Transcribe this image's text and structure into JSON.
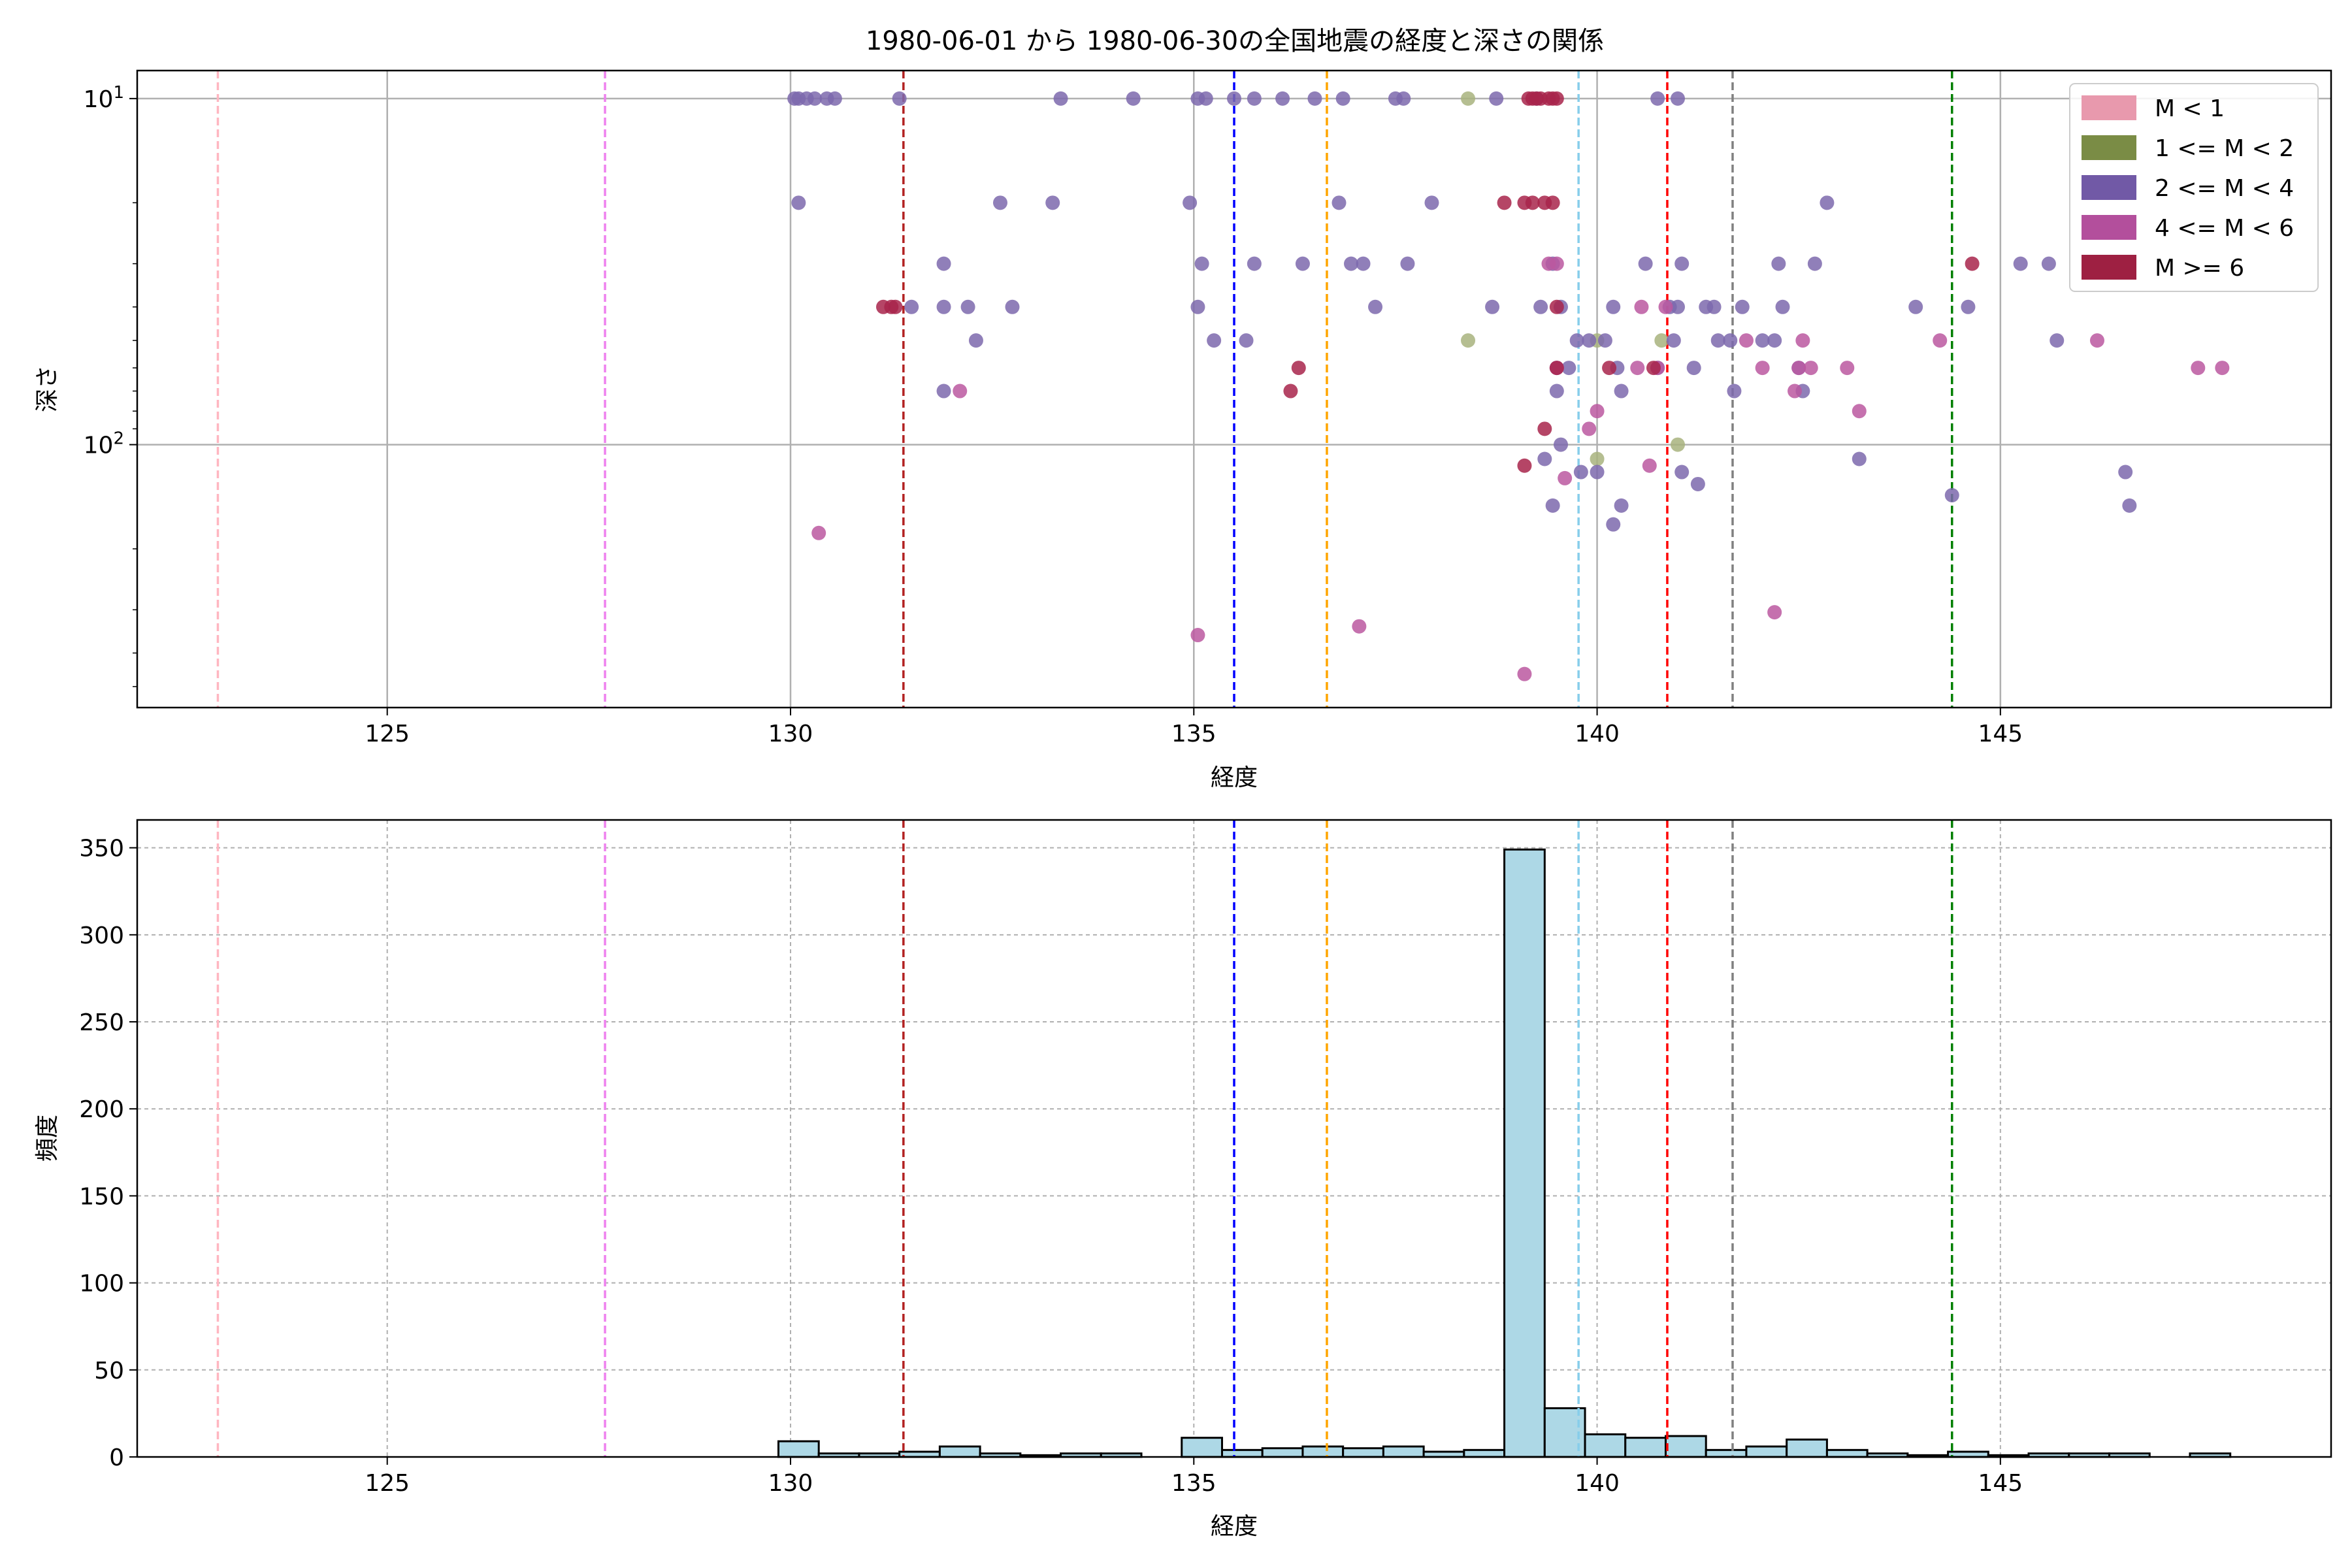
{
  "title": "1980-06-01 から 1980-06-30の全国地震の経度と深さの関係",
  "reference_lines": [
    {
      "x": 122.9,
      "color": "#ffb6c1"
    },
    {
      "x": 127.7,
      "color": "#ee82ee"
    },
    {
      "x": 131.4,
      "color": "#b22222"
    },
    {
      "x": 135.5,
      "color": "#0000ff"
    },
    {
      "x": 136.65,
      "color": "#ffa500"
    },
    {
      "x": 139.77,
      "color": "#87ceeb"
    },
    {
      "x": 140.87,
      "color": "#ff0000"
    },
    {
      "x": 141.68,
      "color": "#808080"
    },
    {
      "x": 144.4,
      "color": "#008000"
    }
  ],
  "chart_data": [
    {
      "type": "scatter",
      "xlabel": "経度",
      "ylabel": "深さ",
      "xlim": [
        121.9,
        149.1
      ],
      "ylim": [
        575,
        8.3
      ],
      "yscale": "log",
      "grid": true,
      "legend_position": "top-right",
      "x_ticks": [
        {
          "v": 125,
          "label": "125"
        },
        {
          "v": 130,
          "label": "130"
        },
        {
          "v": 135,
          "label": "135"
        },
        {
          "v": 140,
          "label": "140"
        },
        {
          "v": 145,
          "label": "145"
        }
      ],
      "y_ticks": [
        {
          "v": 10,
          "base": "10",
          "exp": "1"
        },
        {
          "v": 100,
          "base": "10",
          "exp": "2"
        }
      ],
      "legend": [
        {
          "label": "M < 1",
          "color": "#e899ad"
        },
        {
          "label": "1 <= M < 2",
          "color": "#7a8c45"
        },
        {
          "label": "2 <= M < 4",
          "color": "#7159a6"
        },
        {
          "label": "4 <= M < 6",
          "color": "#b34f9c"
        },
        {
          "label": "M >= 6",
          "color": "#9e2042"
        }
      ],
      "series": [
        {
          "name": "1 <= M < 2",
          "color": "#a8b37e",
          "points": [
            [
              138.4,
              10
            ],
            [
              138.4,
              50
            ],
            [
              140.0,
              50
            ],
            [
              141.0,
              100
            ],
            [
              140.8,
              50
            ],
            [
              140.0,
              110
            ]
          ]
        },
        {
          "name": "2 <= M < 4",
          "color": "#7d68ad",
          "points": [
            [
              130.05,
              10
            ],
            [
              130.1,
              10
            ],
            [
              130.2,
              10
            ],
            [
              130.3,
              10
            ],
            [
              130.45,
              10
            ],
            [
              130.55,
              10
            ],
            [
              131.35,
              10
            ],
            [
              133.35,
              10
            ],
            [
              134.25,
              10
            ],
            [
              135.05,
              10
            ],
            [
              135.15,
              10
            ],
            [
              135.5,
              10
            ],
            [
              135.75,
              10
            ],
            [
              136.1,
              10
            ],
            [
              136.5,
              10
            ],
            [
              136.85,
              10
            ],
            [
              137.5,
              10
            ],
            [
              137.6,
              10
            ],
            [
              138.75,
              10
            ],
            [
              139.25,
              10
            ],
            [
              140.75,
              10
            ],
            [
              141.0,
              10
            ],
            [
              130.1,
              20
            ],
            [
              132.6,
              20
            ],
            [
              133.25,
              20
            ],
            [
              134.95,
              20
            ],
            [
              136.8,
              20
            ],
            [
              137.95,
              20
            ],
            [
              142.85,
              20
            ],
            [
              131.9,
              30
            ],
            [
              135.1,
              30
            ],
            [
              135.75,
              30
            ],
            [
              136.35,
              30
            ],
            [
              136.95,
              30
            ],
            [
              137.1,
              30
            ],
            [
              137.65,
              30
            ],
            [
              139.45,
              30
            ],
            [
              140.6,
              30
            ],
            [
              141.05,
              30
            ],
            [
              142.25,
              30
            ],
            [
              142.7,
              30
            ],
            [
              145.25,
              30
            ],
            [
              145.6,
              30
            ],
            [
              131.5,
              40
            ],
            [
              131.9,
              40
            ],
            [
              132.2,
              40
            ],
            [
              132.75,
              40
            ],
            [
              135.05,
              40
            ],
            [
              137.25,
              40
            ],
            [
              138.7,
              40
            ],
            [
              139.3,
              40
            ],
            [
              139.55,
              40
            ],
            [
              140.2,
              40
            ],
            [
              140.9,
              40
            ],
            [
              141.0,
              40
            ],
            [
              141.35,
              40
            ],
            [
              141.8,
              40
            ],
            [
              141.45,
              40
            ],
            [
              142.3,
              40
            ],
            [
              143.95,
              40
            ],
            [
              144.6,
              40
            ],
            [
              132.3,
              50
            ],
            [
              135.25,
              50
            ],
            [
              135.65,
              50
            ],
            [
              139.75,
              50
            ],
            [
              139.9,
              50
            ],
            [
              140.1,
              50
            ],
            [
              140.95,
              50
            ],
            [
              141.5,
              50
            ],
            [
              141.65,
              50
            ],
            [
              142.05,
              50
            ],
            [
              142.2,
              50
            ],
            [
              145.7,
              50
            ],
            [
              139.5,
              60
            ],
            [
              140.25,
              60
            ],
            [
              140.75,
              60
            ],
            [
              141.2,
              60
            ],
            [
              142.5,
              60
            ],
            [
              139.65,
              60
            ],
            [
              131.9,
              70
            ],
            [
              139.5,
              70
            ],
            [
              140.3,
              70
            ],
            [
              142.55,
              70
            ],
            [
              141.7,
              70
            ],
            [
              139.55,
              100
            ],
            [
              139.35,
              110
            ],
            [
              139.8,
              120
            ],
            [
              140.0,
              120
            ],
            [
              141.05,
              120
            ],
            [
              146.55,
              120
            ],
            [
              141.25,
              130
            ],
            [
              144.4,
              140
            ],
            [
              139.45,
              150
            ],
            [
              140.3,
              150
            ],
            [
              140.2,
              170
            ],
            [
              146.6,
              150
            ],
            [
              143.25,
              110
            ]
          ]
        },
        {
          "name": "4 <= M < 6",
          "color": "#bb58a0",
          "points": [
            [
              130.35,
              180
            ],
            [
              135.05,
              355
            ],
            [
              137.05,
              335
            ],
            [
              139.1,
              460
            ],
            [
              142.2,
              305
            ],
            [
              139.4,
              30
            ],
            [
              139.5,
              30
            ],
            [
              140.55,
              40
            ],
            [
              140.85,
              40
            ],
            [
              141.85,
              50
            ],
            [
              142.55,
              50
            ],
            [
              144.25,
              50
            ],
            [
              139.5,
              60
            ],
            [
              140.5,
              60
            ],
            [
              140.75,
              60
            ],
            [
              142.05,
              60
            ],
            [
              142.5,
              60
            ],
            [
              142.65,
              60
            ],
            [
              143.1,
              60
            ],
            [
              146.2,
              50
            ],
            [
              147.45,
              60
            ],
            [
              147.75,
              60
            ],
            [
              132.1,
              70
            ],
            [
              140.0,
              80
            ],
            [
              142.45,
              70
            ],
            [
              143.25,
              80
            ],
            [
              139.9,
              90
            ],
            [
              140.65,
              115
            ],
            [
              139.6,
              125
            ]
          ]
        },
        {
          "name": "M >= 6",
          "color": "#a8254b",
          "points": [
            [
              139.2,
              10
            ],
            [
              139.3,
              10
            ],
            [
              139.4,
              10
            ],
            [
              139.5,
              10
            ],
            [
              139.15,
              10
            ],
            [
              139.25,
              10
            ],
            [
              139.45,
              10
            ],
            [
              138.85,
              20
            ],
            [
              139.1,
              20
            ],
            [
              139.2,
              20
            ],
            [
              139.35,
              20
            ],
            [
              139.45,
              20
            ],
            [
              131.15,
              40
            ],
            [
              131.25,
              40
            ],
            [
              131.3,
              40
            ],
            [
              139.5,
              40
            ],
            [
              144.65,
              30
            ],
            [
              136.3,
              60
            ],
            [
              140.15,
              60
            ],
            [
              140.7,
              60
            ],
            [
              139.5,
              60
            ],
            [
              136.2,
              70
            ],
            [
              139.35,
              90
            ],
            [
              139.1,
              115
            ]
          ]
        }
      ]
    },
    {
      "type": "bar",
      "subtype": "histogram",
      "xlabel": "経度",
      "ylabel": "頻度",
      "xlim": [
        121.9,
        149.1
      ],
      "ylim": [
        0,
        366
      ],
      "grid": true,
      "bar_color": "#add8e6",
      "x_ticks": [
        {
          "v": 125,
          "label": "125"
        },
        {
          "v": 130,
          "label": "130"
        },
        {
          "v": 135,
          "label": "135"
        },
        {
          "v": 140,
          "label": "140"
        },
        {
          "v": 145,
          "label": "145"
        }
      ],
      "y_ticks": [
        {
          "v": 0,
          "label": "0"
        },
        {
          "v": 50,
          "label": "50"
        },
        {
          "v": 100,
          "label": "100"
        },
        {
          "v": 150,
          "label": "150"
        },
        {
          "v": 200,
          "label": "200"
        },
        {
          "v": 250,
          "label": "250"
        },
        {
          "v": 300,
          "label": "300"
        },
        {
          "v": 350,
          "label": "350"
        }
      ],
      "bins": [
        {
          "x0": 129.85,
          "x1": 130.35,
          "count": 9
        },
        {
          "x0": 130.35,
          "x1": 130.85,
          "count": 2
        },
        {
          "x0": 130.85,
          "x1": 131.35,
          "count": 2
        },
        {
          "x0": 131.35,
          "x1": 131.85,
          "count": 3
        },
        {
          "x0": 131.85,
          "x1": 132.35,
          "count": 6
        },
        {
          "x0": 132.35,
          "x1": 132.85,
          "count": 2
        },
        {
          "x0": 132.85,
          "x1": 133.35,
          "count": 1
        },
        {
          "x0": 133.35,
          "x1": 133.85,
          "count": 2
        },
        {
          "x0": 133.85,
          "x1": 134.35,
          "count": 2
        },
        {
          "x0": 134.85,
          "x1": 135.35,
          "count": 11
        },
        {
          "x0": 135.35,
          "x1": 135.85,
          "count": 4
        },
        {
          "x0": 135.85,
          "x1": 136.35,
          "count": 5
        },
        {
          "x0": 136.35,
          "x1": 136.85,
          "count": 6
        },
        {
          "x0": 136.85,
          "x1": 137.35,
          "count": 5
        },
        {
          "x0": 137.35,
          "x1": 137.85,
          "count": 6
        },
        {
          "x0": 137.85,
          "x1": 138.35,
          "count": 3
        },
        {
          "x0": 138.35,
          "x1": 138.85,
          "count": 4
        },
        {
          "x0": 138.85,
          "x1": 139.35,
          "count": 349
        },
        {
          "x0": 139.35,
          "x1": 139.85,
          "count": 28
        },
        {
          "x0": 139.85,
          "x1": 140.35,
          "count": 13
        },
        {
          "x0": 140.35,
          "x1": 140.85,
          "count": 11
        },
        {
          "x0": 140.85,
          "x1": 141.35,
          "count": 12
        },
        {
          "x0": 141.35,
          "x1": 141.85,
          "count": 4
        },
        {
          "x0": 141.85,
          "x1": 142.35,
          "count": 6
        },
        {
          "x0": 142.35,
          "x1": 142.85,
          "count": 10
        },
        {
          "x0": 142.85,
          "x1": 143.35,
          "count": 4
        },
        {
          "x0": 143.35,
          "x1": 143.85,
          "count": 2
        },
        {
          "x0": 143.85,
          "x1": 144.35,
          "count": 1
        },
        {
          "x0": 144.35,
          "x1": 144.85,
          "count": 3
        },
        {
          "x0": 144.85,
          "x1": 145.35,
          "count": 1
        },
        {
          "x0": 145.35,
          "x1": 145.85,
          "count": 2
        },
        {
          "x0": 145.85,
          "x1": 146.35,
          "count": 2
        },
        {
          "x0": 146.35,
          "x1": 146.85,
          "count": 2
        },
        {
          "x0": 147.35,
          "x1": 147.85,
          "count": 2
        }
      ]
    }
  ]
}
